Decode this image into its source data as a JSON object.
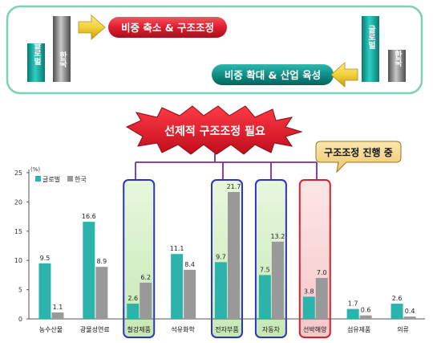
{
  "colors": {
    "teal": "#2bb3ac",
    "gray": "#999999",
    "frame_green": "#7fd0b8",
    "red_banner": "#e21d2f",
    "teal_banner": "#0f8f86",
    "yellow_arrow": "#f2d23a",
    "connector": "#7a2c9a",
    "box_blue": "#2a34c8",
    "box_red": "#d8202c",
    "box_fill_green": "#cfecc0",
    "box_fill_pink": "#f8d0d0",
    "callout_fill": "#f7d98a"
  },
  "top_panel": {
    "left_bars": [
      "글로벌",
      "한국"
    ],
    "left_banner": "비중 축소 & 구조조정",
    "right_bars": [
      "글로벌",
      "한국"
    ],
    "right_banner": "비중 확대 & 산업 육성"
  },
  "burst": {
    "text": "선제적 구조조정 필요"
  },
  "callout": {
    "text": "구조조정 진행 중"
  },
  "chart_data": {
    "type": "bar",
    "unit": "(%)",
    "categories": [
      "농수산물",
      "광물성연료",
      "철강제품",
      "석유화학",
      "전자부품",
      "자동차",
      "선박해양",
      "섬유제품",
      "의류"
    ],
    "series": [
      {
        "name": "글로벌",
        "values": [
          9.5,
          16.6,
          2.6,
          11.1,
          9.7,
          7.5,
          3.8,
          1.7,
          2.6
        ]
      },
      {
        "name": "한국",
        "values": [
          1.1,
          8.9,
          6.2,
          8.4,
          21.7,
          13.2,
          7.0,
          0.6,
          0.4
        ]
      }
    ],
    "value_labels": [
      [
        "9.5",
        "1.1"
      ],
      [
        "16.6",
        "8.9"
      ],
      [
        "2.6",
        "6.2"
      ],
      [
        "11.1",
        "8.4"
      ],
      [
        "9.7",
        "21.7"
      ],
      [
        "7.5",
        "13.2"
      ],
      [
        "3.8",
        "7.0"
      ],
      [
        "1.7",
        "0.6"
      ],
      [
        "2.6",
        "0.4"
      ]
    ],
    "y_ticks": [
      "0",
      "5",
      "10",
      "15",
      "20",
      "25"
    ],
    "ylim": [
      0,
      25
    ],
    "legend": [
      "글로벌",
      "한국"
    ],
    "legend_position": "top-left",
    "highlight_blue": [
      "철강제품",
      "전자부품",
      "자동차"
    ],
    "highlight_red": [
      "선박해양"
    ]
  }
}
